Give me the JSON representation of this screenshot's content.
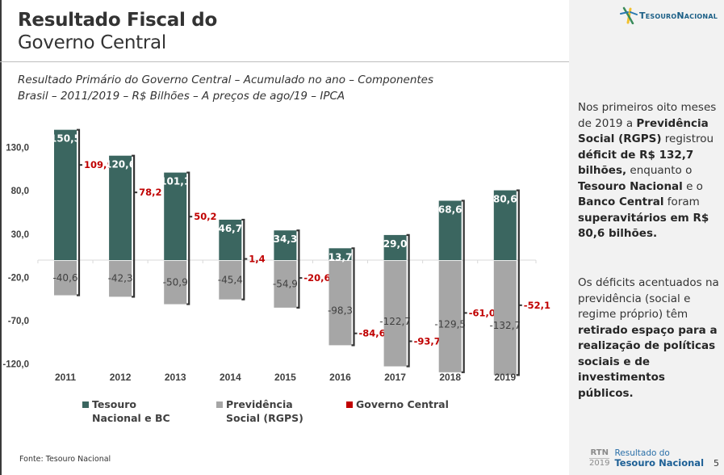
{
  "header": {
    "title_bold": "Resultado Fiscal do",
    "title_regular": "Governo Central",
    "subtitle_line1": "Resultado Primário do Governo Central – Acumulado no ano – Componentes",
    "subtitle_line2": "Brasil – 2011/2019 – R$ Bilhões – A preços de ago/19 – IPCA"
  },
  "logo": {
    "icon": "tesouro-star-icon",
    "text": "TesouroNacional"
  },
  "side_panel": {
    "paragraph1": [
      {
        "t": "Nos primeiros oito meses de 2019 a ",
        "b": false
      },
      {
        "t": "Previdência Social (RGPS)",
        "b": true
      },
      {
        "t": " registrou ",
        "b": false
      },
      {
        "t": "déficit de R$ 132,7 bilhões,",
        "b": true
      },
      {
        "t": " enquanto o ",
        "b": false
      },
      {
        "t": "Tesouro Nacional",
        "b": true
      },
      {
        "t": " e o ",
        "b": false
      },
      {
        "t": "Banco Central",
        "b": true
      },
      {
        "t": " foram ",
        "b": false
      },
      {
        "t": "superavitários em R$ 80,6 bilhões.",
        "b": true
      }
    ],
    "paragraph2": [
      {
        "t": "Os déficits acentuados na previdência (social e regime próprio) têm ",
        "b": false
      },
      {
        "t": "retirado espaço para a realização de políticas sociais e de investimentos públicos.",
        "b": true
      }
    ]
  },
  "colors": {
    "tesouro": "#3b6660",
    "previdencia": "#a6a6a6",
    "governo": "#c00000",
    "bracket": "#333333"
  },
  "chart_data": {
    "type": "bar",
    "stacked": true,
    "title": "Resultado Primário do Governo Central – Acumulado no ano – Componentes",
    "xlabel": "",
    "ylabel": "R$ Bilhões",
    "categories": [
      "2011",
      "2012",
      "2013",
      "2014",
      "2015",
      "2016",
      "2017",
      "2018",
      "2019"
    ],
    "series": [
      {
        "name": "Tesouro Nacional e BC",
        "values": [
          150.5,
          120.6,
          101.1,
          46.7,
          34.3,
          13.7,
          29.0,
          68.6,
          80.6
        ],
        "labels": [
          "150,5",
          "120,6",
          "101,1",
          "46,7",
          "34,3",
          "13,7",
          "29,0",
          "68,6",
          "80,6"
        ]
      },
      {
        "name": "Previdência Social (RGPS)",
        "values": [
          -40.6,
          -42.3,
          -50.9,
          -45.4,
          -54.9,
          -98.3,
          -122.7,
          -129.5,
          -132.7
        ],
        "labels": [
          "-40,6",
          "-42,3",
          "-50,9",
          "-45,4",
          "-54,9",
          "-98,3",
          "-122,7",
          "-129,5",
          "-132,7"
        ]
      },
      {
        "name": "Governo Central",
        "values": [
          109.9,
          78.2,
          50.2,
          1.4,
          -20.6,
          -84.6,
          -93.7,
          -61.0,
          -52.1
        ],
        "labels": [
          "109,9",
          "78,2",
          "50,2",
          "1,4",
          "-20,6",
          "-84,6",
          "-93,7",
          "-61,0",
          "-52,1"
        ]
      }
    ],
    "yticks": [
      130.0,
      80.0,
      30.0,
      -20.0,
      -70.0,
      -120.0
    ],
    "ytick_labels": [
      "130,0",
      "80,0",
      "30,0",
      "-20,0",
      "-70,0",
      "-120,0"
    ],
    "ylim": [
      -120,
      150.5
    ],
    "grid": false,
    "legend": {
      "position": "bottom",
      "entries": [
        {
          "line1": "Tesouro",
          "line2": "Nacional e BC"
        },
        {
          "line1": "Previdência",
          "line2": "Social (RGPS)"
        },
        {
          "line1": "Governo Central",
          "line2": ""
        }
      ]
    }
  },
  "footer": {
    "source": "Fonte: Tesouro Nacional",
    "rtn": "RTN",
    "rtn_year": "2019",
    "rtn_line1": "Resultado do",
    "rtn_line2": "Tesouro Nacional",
    "page_number": "5"
  }
}
